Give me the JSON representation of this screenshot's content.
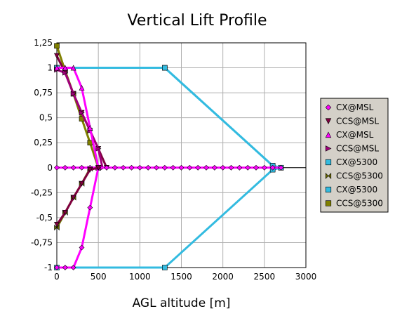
{
  "chart_data": {
    "type": "line",
    "title": "Vertical Lift Profile",
    "xlabel": "AGL altitude [m]",
    "ylabel": "",
    "xlim": [
      0,
      3000
    ],
    "ylim": [
      -1,
      1.25
    ],
    "x_ticks": [
      0,
      500,
      1000,
      1500,
      2000,
      2500,
      3000
    ],
    "x_tick_labels": [
      "0",
      "500",
      "1000",
      "1500",
      "2000",
      "2500",
      "3000"
    ],
    "y_ticks": [
      1.25,
      1,
      0.75,
      0.5,
      0.25,
      0,
      -0.25,
      -0.5,
      -0.75,
      -1
    ],
    "y_tick_labels": [
      "1,25",
      "1",
      "0,75",
      "0,5",
      "0,25",
      "0",
      "-0,25",
      "-0,5",
      "-0,75",
      "-1"
    ],
    "grid": true,
    "legend_position": "right",
    "series": [
      {
        "name": "CX@MSL",
        "color": "#ff00ff",
        "marker": "diamond",
        "x": [
          0,
          100,
          200,
          300,
          400,
          500,
          600,
          700,
          800,
          900,
          1000,
          1100,
          1200,
          1300,
          1400,
          1500,
          1600,
          1700,
          1800,
          1900,
          2000,
          2100,
          2200,
          2300,
          2400,
          2500,
          2600,
          2700
        ],
        "y": [
          0,
          0,
          0,
          0,
          0,
          0,
          0,
          0,
          0,
          0,
          0,
          0,
          0,
          0,
          0,
          0,
          0,
          0,
          0,
          0,
          0,
          0,
          0,
          0,
          0,
          0,
          0,
          0
        ]
      },
      {
        "name": "CCS@MSL",
        "color": "#800040",
        "marker": "triangle-down",
        "x": [
          0,
          100,
          200,
          300,
          400,
          500,
          600
        ],
        "y": [
          1.12,
          0.95,
          0.74,
          0.55,
          0.37,
          0.19,
          0
        ]
      },
      {
        "name": "CX@MSL",
        "color": "#ff00ff",
        "marker": "triangle-up",
        "x": [
          0,
          100,
          200,
          300,
          400,
          500
        ],
        "y": [
          1,
          1,
          1,
          0.8,
          0.4,
          0
        ]
      },
      {
        "name": "CCS@MSL",
        "color": "#a0007a",
        "marker": "triangle-right",
        "x": [
          0,
          100,
          200,
          300,
          400,
          500,
          550
        ],
        "y": [
          0.98,
          0.95,
          0.74,
          0.55,
          0.37,
          0.19,
          0
        ]
      },
      {
        "name": "CX@5300",
        "color": "#33bbe0",
        "marker": "square",
        "x": [
          0,
          1300,
          2600,
          2700,
          2600,
          1300,
          0
        ],
        "y": [
          1,
          1,
          0.02,
          0,
          -0.02,
          -1,
          -1
        ]
      },
      {
        "name": "CCS@5300",
        "color": "#6b6b00",
        "marker": "bowtie",
        "x": [
          0,
          100,
          200,
          300,
          400,
          500
        ],
        "y": [
          -0.6,
          -0.45,
          -0.3,
          -0.16,
          -0.01,
          0
        ]
      },
      {
        "name": "CX@5300",
        "color": "#33bbe0",
        "marker": "square",
        "x": [
          0,
          1300,
          2600,
          2700
        ],
        "y": [
          1,
          1,
          0.02,
          0
        ]
      },
      {
        "name": "CCS@5300",
        "color": "#808000",
        "marker": "square",
        "x": [
          0,
          100,
          200,
          300,
          400,
          500
        ],
        "y": [
          1.22,
          0.97,
          0.74,
          0.49,
          0.25,
          0
        ]
      }
    ],
    "lower_series": [
      {
        "name": "CX@MSL",
        "color": "#ff00ff",
        "marker": "diamond",
        "x": [
          0,
          100,
          200,
          300,
          400,
          500
        ],
        "y": [
          -1,
          -1,
          -1,
          -0.8,
          -0.4,
          0
        ]
      },
      {
        "name": "CCS@MSL",
        "color": "#800040",
        "marker": "triangle-down",
        "x": [
          0,
          100,
          200,
          300,
          400,
          500
        ],
        "y": [
          -0.57,
          -0.45,
          -0.3,
          -0.16,
          -0.02,
          0
        ]
      }
    ],
    "legend": [
      "CX@MSL",
      "CCS@MSL",
      "CX@MSL",
      "CCS@MSL",
      "CX@5300",
      "CCS@5300",
      "CX@5300",
      "CCS@5300"
    ]
  }
}
